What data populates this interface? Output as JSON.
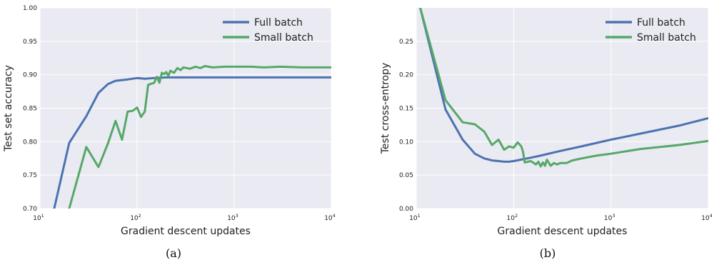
{
  "chart_data": [
    {
      "type": "line",
      "panel_label": "(a)",
      "xlabel": "Gradient descent updates",
      "ylabel": "Test set accuracy",
      "x_scale": "log",
      "xlim": [
        10,
        10000
      ],
      "ylim": [
        0.7,
        1.0
      ],
      "xtick_labels": [
        {
          "base": "10",
          "exp": "1"
        },
        {
          "base": "10",
          "exp": "2"
        },
        {
          "base": "10",
          "exp": "3"
        },
        {
          "base": "10",
          "exp": "4"
        }
      ],
      "ytick_labels": [
        "0.70",
        "0.75",
        "0.80",
        "0.85",
        "0.90",
        "0.95",
        "1.00"
      ],
      "grid": true,
      "legend_position": "top-right",
      "series": [
        {
          "name": "Full batch",
          "color": "#4c72b0",
          "x": [
            14,
            20,
            30,
            40,
            50,
            60,
            80,
            100,
            120,
            150,
            200,
            300,
            500,
            1000,
            2000,
            5000,
            10000
          ],
          "y": [
            0.7,
            0.798,
            0.838,
            0.873,
            0.886,
            0.891,
            0.893,
            0.895,
            0.894,
            0.895,
            0.896,
            0.896,
            0.896,
            0.896,
            0.896,
            0.896,
            0.896
          ]
        },
        {
          "name": "Small batch",
          "color": "#55a868",
          "x": [
            20,
            30,
            40,
            50,
            60,
            70,
            80,
            90,
            100,
            110,
            120,
            130,
            150,
            160,
            170,
            180,
            190,
            200,
            210,
            220,
            240,
            260,
            280,
            300,
            350,
            400,
            450,
            500,
            600,
            800,
            1000,
            1500,
            2000,
            3000,
            5000,
            10000
          ],
          "y": [
            0.7,
            0.792,
            0.762,
            0.797,
            0.831,
            0.803,
            0.845,
            0.846,
            0.851,
            0.837,
            0.845,
            0.885,
            0.888,
            0.897,
            0.888,
            0.903,
            0.901,
            0.904,
            0.898,
            0.906,
            0.903,
            0.91,
            0.907,
            0.911,
            0.909,
            0.912,
            0.91,
            0.913,
            0.911,
            0.912,
            0.912,
            0.912,
            0.911,
            0.912,
            0.911,
            0.911
          ]
        }
      ]
    },
    {
      "type": "line",
      "panel_label": "(b)",
      "xlabel": "Gradient descent updates",
      "ylabel": "Test cross-entropy",
      "x_scale": "log",
      "xlim": [
        10,
        10000
      ],
      "ylim": [
        0.0,
        0.3
      ],
      "xtick_labels": [
        {
          "base": "10",
          "exp": "1"
        },
        {
          "base": "10",
          "exp": "2"
        },
        {
          "base": "10",
          "exp": "3"
        },
        {
          "base": "10",
          "exp": "4"
        }
      ],
      "ytick_labels": [
        "0.00",
        "0.05",
        "0.10",
        "0.15",
        "0.20",
        "0.25"
      ],
      "grid": true,
      "legend_position": "top-right",
      "series": [
        {
          "name": "Full batch",
          "color": "#4c72b0",
          "x": [
            11,
            20,
            30,
            40,
            50,
            60,
            70,
            80,
            90,
            100,
            150,
            200,
            300,
            500,
            1000,
            2000,
            5000,
            10000
          ],
          "y": [
            0.3,
            0.148,
            0.103,
            0.082,
            0.075,
            0.072,
            0.071,
            0.07,
            0.07,
            0.071,
            0.076,
            0.08,
            0.086,
            0.093,
            0.103,
            0.112,
            0.124,
            0.135
          ]
        },
        {
          "name": "Small batch",
          "color": "#55a868",
          "x": [
            11,
            20,
            30,
            40,
            50,
            60,
            70,
            80,
            90,
            100,
            110,
            120,
            125,
            130,
            150,
            170,
            180,
            190,
            200,
            210,
            220,
            240,
            260,
            280,
            300,
            350,
            400,
            500,
            700,
            1000,
            2000,
            5000,
            10000
          ],
          "y": [
            0.3,
            0.162,
            0.129,
            0.126,
            0.115,
            0.095,
            0.103,
            0.088,
            0.093,
            0.091,
            0.099,
            0.093,
            0.085,
            0.069,
            0.071,
            0.066,
            0.07,
            0.063,
            0.069,
            0.064,
            0.073,
            0.064,
            0.068,
            0.066,
            0.068,
            0.068,
            0.072,
            0.075,
            0.079,
            0.082,
            0.089,
            0.095,
            0.101
          ]
        }
      ]
    }
  ]
}
